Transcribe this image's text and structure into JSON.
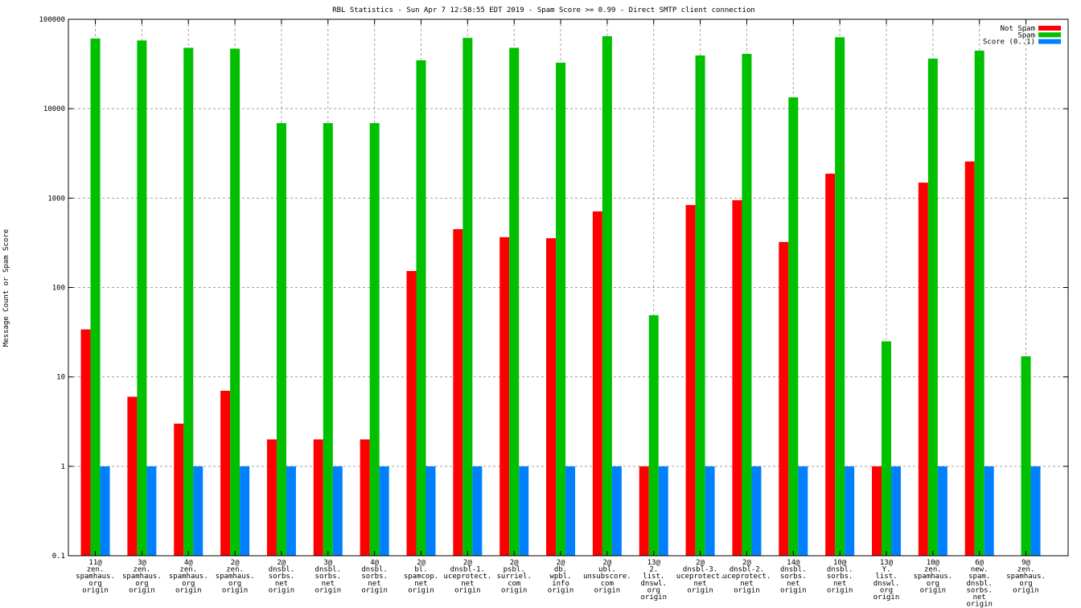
{
  "chart_data": {
    "type": "bar",
    "title": "RBL Statistics - Sun Apr  7 12:58:55 EDT 2019 - Spam Score >= 0.99 - Direct SMTP client connection",
    "xlabel": "",
    "ylabel": "Message Count or Spam Score",
    "yscale": "log",
    "ylim": [
      0.1,
      100000
    ],
    "yticks": [
      "0.1",
      "1",
      "10",
      "100",
      "1000",
      "10000",
      "100000"
    ],
    "grid": true,
    "legend_position": "top-right",
    "categories": [
      [
        "11@",
        "zen.",
        "spamhaus.",
        "org",
        "origin"
      ],
      [
        "3@",
        "zen.",
        "spamhaus.",
        "org",
        "origin"
      ],
      [
        "4@",
        "zen.",
        "spamhaus.",
        "org",
        "origin"
      ],
      [
        "2@",
        "zen.",
        "spamhaus.",
        "org",
        "origin"
      ],
      [
        "2@",
        "dnsbl.",
        "sorbs.",
        "net",
        "origin"
      ],
      [
        "3@",
        "dnsbl.",
        "sorbs.",
        "net",
        "origin"
      ],
      [
        "4@",
        "dnsbl.",
        "sorbs.",
        "net",
        "origin"
      ],
      [
        "2@",
        "bl.",
        "spamcop.",
        "net",
        "origin"
      ],
      [
        "2@",
        "dnsbl-1.",
        "uceprotect.",
        "net",
        "origin"
      ],
      [
        "2@",
        "psbl.",
        "surriel.",
        "com",
        "origin"
      ],
      [
        "2@",
        "db.",
        "wpbl.",
        "info",
        "origin"
      ],
      [
        "2@",
        "ubl.",
        "unsubscore.",
        "com",
        "origin"
      ],
      [
        "13@",
        "2.",
        "list.",
        "dnswl.",
        "org",
        "origin"
      ],
      [
        "2@",
        "dnsbl-3.",
        "uceprotect.",
        "net",
        "origin"
      ],
      [
        "2@",
        "dnsbl-2.",
        "uceprotect.",
        "net",
        "origin"
      ],
      [
        "14@",
        "dnsbl.",
        "sorbs.",
        "net",
        "origin"
      ],
      [
        "10@",
        "dnsbl.",
        "sorbs.",
        "net",
        "origin"
      ],
      [
        "13@",
        "Y.",
        "list.",
        "dnswl.",
        "org",
        "origin"
      ],
      [
        "10@",
        "zen.",
        "spamhaus.",
        "org",
        "origin"
      ],
      [
        "6@",
        "new.",
        "spam.",
        "dnsbl.",
        "sorbs.",
        "net",
        "origin"
      ],
      [
        "9@",
        "zen.",
        "spamhaus.",
        "org",
        "origin"
      ]
    ],
    "series": [
      {
        "name": "Not Spam",
        "color": "#ff0000",
        "values": [
          34,
          6,
          3,
          7,
          2,
          2,
          2,
          153,
          450,
          366,
          356,
          710,
          1,
          837,
          948,
          323,
          1875,
          1,
          1490,
          2570,
          0
        ]
      },
      {
        "name": "Spam",
        "color": "#00c000",
        "values": [
          61000,
          58000,
          48000,
          47000,
          6900,
          6900,
          6900,
          34800,
          62000,
          48000,
          32700,
          64700,
          49,
          39400,
          41000,
          13400,
          63000,
          25,
          36300,
          44600,
          17
        ]
      },
      {
        "name": "Score (0..1)",
        "color": "#0080ff",
        "values": [
          1,
          1,
          1,
          1,
          1,
          1,
          1,
          1,
          1,
          1,
          1,
          1,
          1,
          1,
          1,
          1,
          1,
          1,
          1,
          1,
          1
        ]
      }
    ]
  }
}
